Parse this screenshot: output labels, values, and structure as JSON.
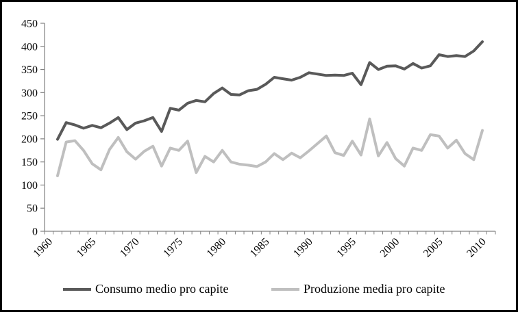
{
  "chart_data": {
    "type": "line",
    "title": "",
    "xlabel": "",
    "ylabel": "",
    "grid": false,
    "background": "#ffffff",
    "axis_color": "#808080",
    "tick_label_color": "#000000",
    "legend_position": "bottom",
    "ylim": [
      0,
      450
    ],
    "ytick_step": 50,
    "yticks": [
      0,
      50,
      100,
      150,
      200,
      250,
      300,
      350,
      400,
      450
    ],
    "x_axis_span_years": [
      1960,
      2012
    ],
    "xtick_labeled_years": [
      1960,
      1965,
      1970,
      1975,
      1980,
      1985,
      1990,
      1995,
      2000,
      2005,
      2010
    ],
    "x": [
      1961,
      1962,
      1963,
      1964,
      1965,
      1966,
      1967,
      1968,
      1969,
      1970,
      1971,
      1972,
      1973,
      1974,
      1975,
      1976,
      1977,
      1978,
      1979,
      1980,
      1981,
      1982,
      1983,
      1984,
      1985,
      1986,
      1987,
      1988,
      1989,
      1990,
      1991,
      1992,
      1993,
      1994,
      1995,
      1996,
      1997,
      1998,
      1999,
      2000,
      2001,
      2002,
      2003,
      2004,
      2005,
      2006,
      2007,
      2008,
      2009,
      2010
    ],
    "series": [
      {
        "name": "Consumo medio pro capite",
        "color": "#595959",
        "values": [
          199,
          235,
          230,
          223,
          229,
          224,
          234,
          246,
          220,
          234,
          239,
          246,
          216,
          266,
          262,
          277,
          283,
          280,
          298,
          310,
          296,
          295,
          304,
          307,
          318,
          333,
          330,
          327,
          333,
          343,
          340,
          337,
          338,
          337,
          342,
          317,
          365,
          350,
          357,
          358,
          351,
          363,
          353,
          358,
          382,
          378,
          380,
          378,
          390,
          410
        ]
      },
      {
        "name": "Produzione media pro capite",
        "color": "#BFBFBF",
        "values": [
          120,
          193,
          196,
          175,
          146,
          133,
          177,
          203,
          172,
          156,
          173,
          184,
          141,
          180,
          175,
          195,
          127,
          162,
          150,
          175,
          150,
          145,
          143,
          140,
          150,
          168,
          155,
          169,
          159,
          174,
          190,
          206,
          170,
          164,
          195,
          165,
          243,
          163,
          192,
          157,
          141,
          180,
          175,
          209,
          206,
          180,
          197,
          168,
          155,
          218
        ]
      }
    ]
  }
}
